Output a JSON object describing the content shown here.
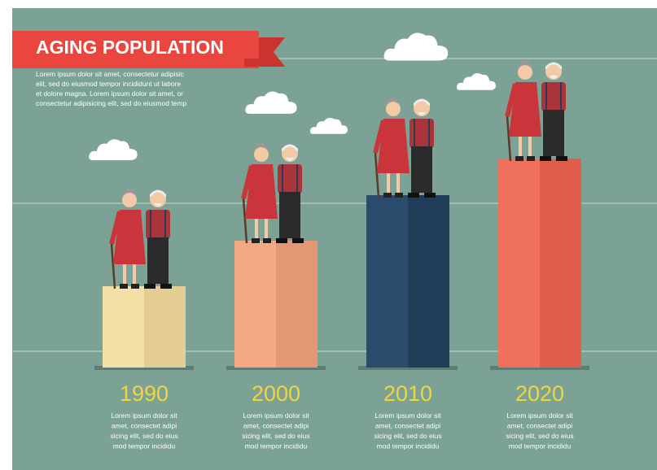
{
  "header": {
    "title": "AGING POPULATION",
    "intro": [
      "Lorem ipsum dolor sit amet,  consectetur adipisic",
      "elit, sed do eiusmod tempor  incididunt ut labore",
      "et dolore  magna. Lorem ipsum dolor sit amet, or",
      "consectetur adipisicing elit, sed do eiusmod temp"
    ]
  },
  "columns": [
    {
      "year": "1990",
      "text": [
        "Lorem ipsum dolor sit",
        "amet,  consectet adipi",
        "sicing elit, sed do eius",
        "mod tempor incididu"
      ]
    },
    {
      "year": "2000",
      "text": [
        "Lorem ipsum dolor sit",
        "amet,  consectet adipi",
        "sicing elit, sed do eius",
        "mod tempor incididu"
      ]
    },
    {
      "year": "2010",
      "text": [
        "Lorem ipsum dolor sit",
        "amet,  consectet adipi",
        "sicing elit, sed do eius",
        "mod tempor incididu"
      ]
    },
    {
      "year": "2020",
      "text": [
        "Lorem ipsum dolor sit",
        "amet,  consectet adipi",
        "sicing elit, sed do eius",
        "mod tempor incididu"
      ]
    }
  ]
}
